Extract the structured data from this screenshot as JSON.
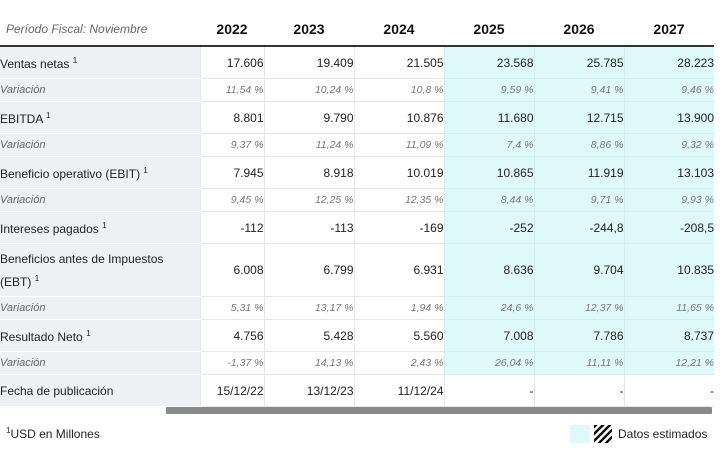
{
  "header": {
    "period_label": "Período Fiscal: Noviembre",
    "years": [
      "2022",
      "2023",
      "2024",
      "2025",
      "2026",
      "2027"
    ]
  },
  "rows": [
    {
      "label": "Ventas netas",
      "sup": "1",
      "values": [
        "17.606",
        "19.409",
        "21.505",
        "23.568",
        "25.785",
        "28.223"
      ]
    },
    {
      "label": "Variación",
      "values": [
        "11,54 %",
        "10,24 %",
        "10,8 %",
        "9,59 %",
        "9,41 %",
        "9,46 %"
      ]
    },
    {
      "label": "EBITDA",
      "sup": "1",
      "values": [
        "8.801",
        "9.790",
        "10.876",
        "11.680",
        "12.715",
        "13.900"
      ]
    },
    {
      "label": "Variación",
      "values": [
        "9,37 %",
        "11,24 %",
        "11,09 %",
        "7,4 %",
        "8,86 %",
        "9,32 %"
      ]
    },
    {
      "label": "Beneficio operativo (EBIT)",
      "sup": "1",
      "values": [
        "7.945",
        "8.918",
        "10.019",
        "10.865",
        "11.919",
        "13.103"
      ]
    },
    {
      "label": "Variación",
      "values": [
        "9,45 %",
        "12,25 %",
        "12,35 %",
        "8,44 %",
        "9,71 %",
        "9,93 %"
      ]
    },
    {
      "label": "Intereses pagados",
      "sup": "1",
      "values": [
        "-112",
        "-113",
        "-169",
        "-252",
        "-244,8",
        "-208,5"
      ]
    },
    {
      "label_line1": "Beneficios antes de Impuestos",
      "label_line2": "(EBT)",
      "sup": "1",
      "values": [
        "6.008",
        "6.799",
        "6.931",
        "8.636",
        "9.704",
        "10.835"
      ]
    },
    {
      "label": "Variación",
      "values": [
        "5,31 %",
        "13,17 %",
        "1,94 %",
        "24,6 %",
        "12,37 %",
        "11,65 %"
      ]
    },
    {
      "label": "Resultado Neto",
      "sup": "1",
      "values": [
        "4.756",
        "5.428",
        "5.560",
        "7.008",
        "7.786",
        "8.737"
      ]
    },
    {
      "label": "Variación",
      "values": [
        "-1,37 %",
        "14,13 %",
        "2,43 %",
        "26,04 %",
        "11,11 %",
        "12,21 %"
      ]
    },
    {
      "label": "Fecha de publicación",
      "values": [
        "15/12/22",
        "13/12/23",
        "11/12/24",
        "-",
        "-",
        "-"
      ]
    }
  ],
  "footer": {
    "note_sup": "1",
    "note": "USD en Millones",
    "legend_label": "Datos estimados"
  },
  "colors": {
    "estimated_bg": "#dff9fb",
    "label_bg": "#eef0f3"
  }
}
